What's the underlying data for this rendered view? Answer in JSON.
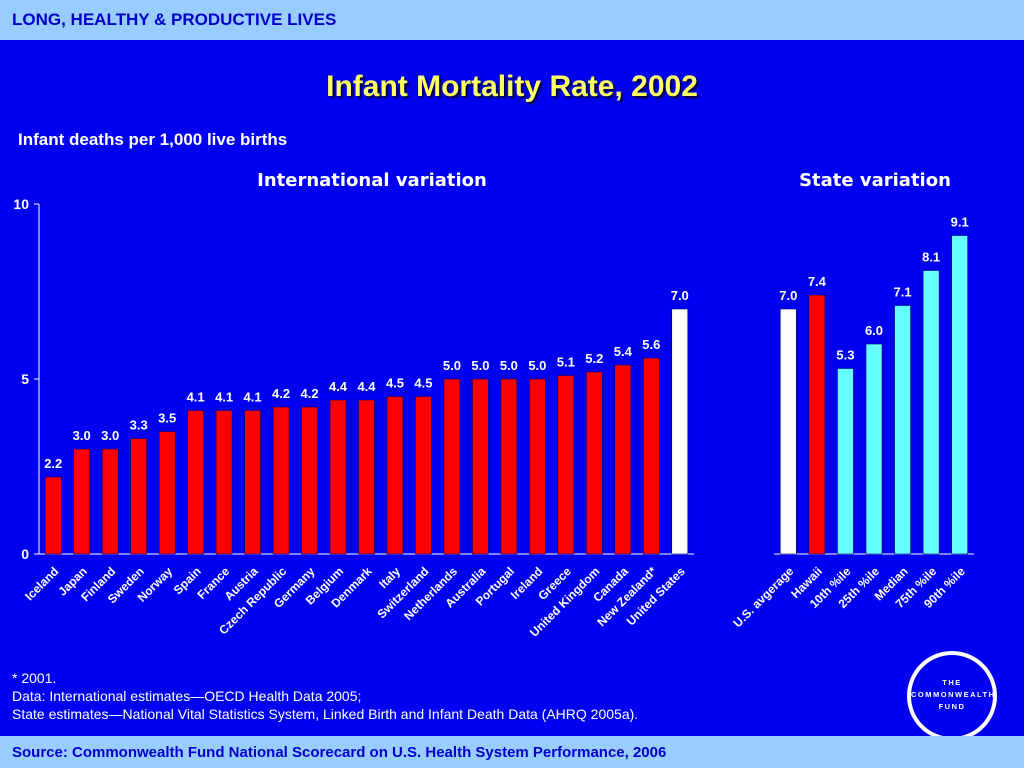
{
  "header": {
    "section_title": "LONG, HEALTHY & PRODUCTIVE LIVES"
  },
  "title": "Infant Mortality Rate, 2002",
  "subtitle": "Infant deaths per 1,000 live births",
  "footnotes": [
    "* 2001.",
    "Data: International estimates—OECD Health Data 2005;",
    "State estimates—National Vital Statistics System, Linked Birth and Infant Death Data (AHRQ 2005a)."
  ],
  "footer": {
    "source": "Source: Commonwealth Fund National Scorecard on U.S. Health System Performance, 2006"
  },
  "logo": {
    "line1": "THE",
    "line2": "COMMONWEALTH",
    "line3": "FUND"
  },
  "colors": {
    "background": "#0000f0",
    "bar_red": "#ff0000",
    "bar_white": "#ffffff",
    "bar_cyan": "#66ffff",
    "title": "#ffff66",
    "band": "#99ccff"
  },
  "chart_data": [
    {
      "type": "bar",
      "title": "International variation",
      "ylim": [
        0,
        10
      ],
      "yticks": [
        0,
        5,
        10
      ],
      "categories": [
        "Iceland",
        "Japan",
        "Finland",
        "Sweden",
        "Norway",
        "Spain",
        "France",
        "Austria",
        "Czech Republic",
        "Germany",
        "Belgium",
        "Denmark",
        "Italy",
        "Switzerland",
        "Netherlands",
        "Australia",
        "Portugal",
        "Ireland",
        "Greece",
        "United Kingdom",
        "Canada",
        "New Zealand*",
        "United States"
      ],
      "values": [
        2.2,
        3.0,
        3.0,
        3.3,
        3.5,
        4.1,
        4.1,
        4.1,
        4.2,
        4.2,
        4.4,
        4.4,
        4.5,
        4.5,
        5.0,
        5.0,
        5.0,
        5.0,
        5.1,
        5.2,
        5.4,
        5.6,
        7.0
      ],
      "labels": [
        "2.2",
        "3.0",
        "3.0",
        "3.3",
        "3.5",
        "4.1",
        "4.1",
        "4.1",
        "4.2",
        "4.2",
        "4.4",
        "4.4",
        "4.5",
        "4.5",
        "5.0",
        "5.0",
        "5.0",
        "5.0",
        "5.1",
        "5.2",
        "5.4",
        "5.6",
        "7.0"
      ],
      "colors": [
        "#ff0000",
        "#ff0000",
        "#ff0000",
        "#ff0000",
        "#ff0000",
        "#ff0000",
        "#ff0000",
        "#ff0000",
        "#ff0000",
        "#ff0000",
        "#ff0000",
        "#ff0000",
        "#ff0000",
        "#ff0000",
        "#ff0000",
        "#ff0000",
        "#ff0000",
        "#ff0000",
        "#ff0000",
        "#ff0000",
        "#ff0000",
        "#ff0000",
        "#ffffff"
      ]
    },
    {
      "type": "bar",
      "title": "State variation",
      "ylim": [
        0,
        10
      ],
      "categories": [
        "U.S. avgerage",
        "Hawaii",
        "10th %ile",
        "25th %ile",
        "Median",
        "75th %ile",
        "90th %ile"
      ],
      "values": [
        7.0,
        7.4,
        5.3,
        6.0,
        7.1,
        8.1,
        9.1
      ],
      "labels": [
        "7.0",
        "7.4",
        "5.3",
        "6.0",
        "7.1",
        "8.1",
        "9.1"
      ],
      "colors": [
        "#ffffff",
        "#ff0000",
        "#66ffff",
        "#66ffff",
        "#66ffff",
        "#66ffff",
        "#66ffff"
      ]
    }
  ]
}
